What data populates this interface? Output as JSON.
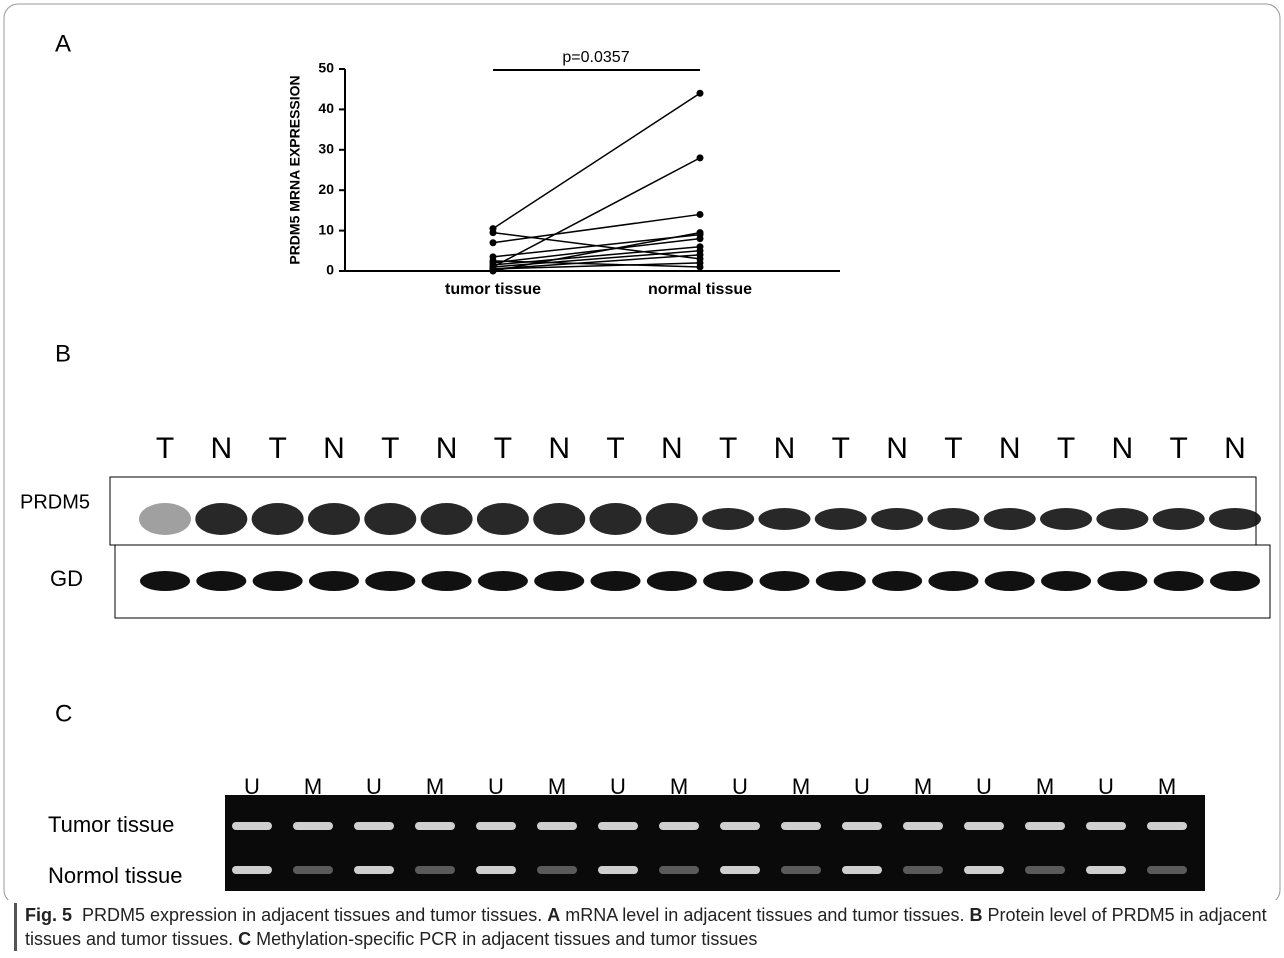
{
  "panel_labels": [
    "A",
    "B",
    "C"
  ],
  "chart_data": {
    "type": "paired-line",
    "y_label": "PRDM5 MRNA EXPRESSION",
    "annotation": "p=0.0357",
    "categories": [
      "tumor tissue",
      "normal tissue"
    ],
    "color": "#000000",
    "series": [
      {
        "values": [
          10.5,
          44
        ]
      },
      {
        "values": [
          1,
          28
        ]
      },
      {
        "values": [
          9.5,
          3
        ]
      },
      {
        "values": [
          7,
          14
        ]
      },
      {
        "values": [
          3.5,
          9
        ]
      },
      {
        "values": [
          2,
          8
        ]
      },
      {
        "values": [
          1.5,
          6
        ]
      },
      {
        "values": [
          1,
          5
        ]
      },
      {
        "values": [
          0.5,
          4
        ]
      },
      {
        "values": [
          0.5,
          2
        ]
      },
      {
        "values": [
          2.5,
          1
        ]
      },
      {
        "values": [
          0,
          9.5
        ]
      }
    ],
    "ylim": [
      0,
      50
    ],
    "yticks": [
      0,
      10,
      20,
      30,
      40,
      50
    ]
  },
  "western_blot": {
    "lanes": [
      "T",
      "N",
      "T",
      "N",
      "T",
      "N",
      "T",
      "N",
      "T",
      "N",
      "T",
      "N",
      "T",
      "N",
      "T",
      "N",
      "T",
      "N",
      "T",
      "N"
    ],
    "rows": [
      "PRDM5",
      "GD"
    ]
  },
  "pcr": {
    "lanes": [
      "U",
      "M",
      "U",
      "M",
      "U",
      "M",
      "U",
      "M",
      "U",
      "M",
      "U",
      "M",
      "U",
      "M",
      "U",
      "M"
    ],
    "rows": [
      "Tumor  tissue",
      "Normol tissue"
    ]
  },
  "caption": {
    "label": "Fig. 5",
    "intro": "PRDM5 expression in adjacent tissues and tumor tissues.",
    "parts": [
      {
        "letter": "A",
        "text": "mRNA level in adjacent tissues and tumor tissues."
      },
      {
        "letter": "B",
        "text": "Protein level of PRDM5 in adjacent tissues and tumor tissues."
      },
      {
        "letter": "C",
        "text": "Methylation-specific PCR in adjacent tissues and tumor tissues"
      }
    ]
  }
}
